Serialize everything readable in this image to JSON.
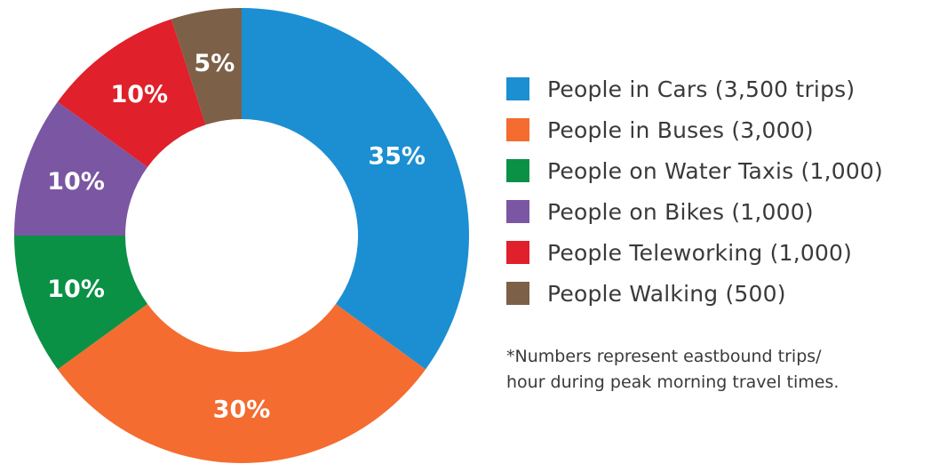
{
  "chart_data": {
    "type": "pie",
    "donut": true,
    "slices": [
      {
        "legend": "People in Cars (3,500 trips)",
        "label": "35%",
        "value": 35,
        "color": "#1b8fd2"
      },
      {
        "legend": "People in Buses (3,000)",
        "label": "30%",
        "value": 30,
        "color": "#f46c30"
      },
      {
        "legend": "People on Water Taxis (1,000)",
        "label": "10%",
        "value": 10,
        "color": "#0a9145"
      },
      {
        "legend": "People on Bikes (1,000)",
        "label": "10%",
        "value": 10,
        "color": "#7b56a3"
      },
      {
        "legend": "People Teleworking (1,000)",
        "label": "10%",
        "value": 10,
        "color": "#e0202a"
      },
      {
        "legend": "People Walking (500)",
        "label": "5%",
        "value": 5,
        "color": "#7d6048"
      }
    ],
    "legend_position": "right",
    "footnote_lines": [
      "*Numbers represent eastbound trips/",
      "hour during peak morning travel times."
    ]
  }
}
